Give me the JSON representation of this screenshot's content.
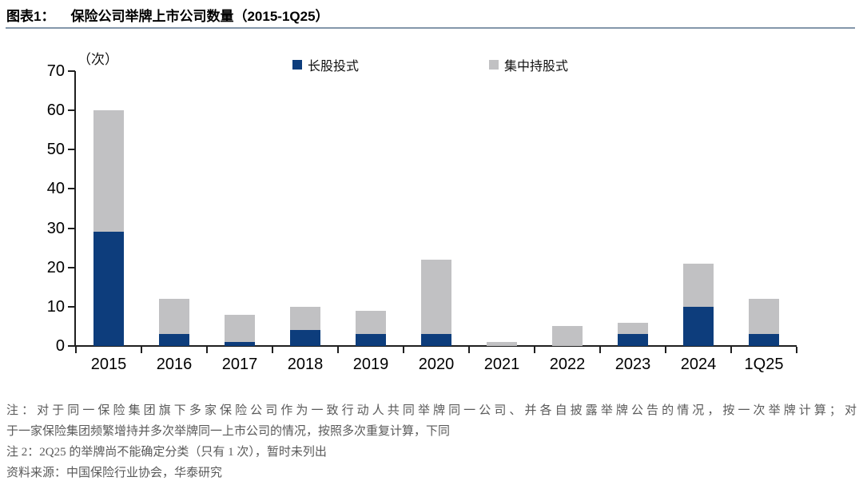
{
  "header": {
    "fig_label": "图表1：",
    "title": "保险公司举牌上市公司数量（2015-1Q25）"
  },
  "chart_data": {
    "type": "bar",
    "stacked": true,
    "title": "保险公司举牌上市公司数量（2015-1Q25）",
    "unit_label": "（次）",
    "categories": [
      "2015",
      "2016",
      "2017",
      "2018",
      "2019",
      "2020",
      "2021",
      "2022",
      "2023",
      "2024",
      "1Q25"
    ],
    "series": [
      {
        "name": "长股投式",
        "color": "#0D3D7C",
        "values": [
          29,
          3,
          1,
          4,
          3,
          3,
          0,
          0,
          3,
          10,
          3
        ]
      },
      {
        "name": "集中持股式",
        "color": "#C1C1C3",
        "values": [
          31,
          9,
          7,
          6,
          6,
          19,
          1,
          5,
          3,
          11,
          9
        ]
      }
    ],
    "totals": [
      60,
      12,
      8,
      10,
      9,
      22,
      1,
      5,
      6,
      21,
      12
    ],
    "ylim": [
      0,
      70
    ],
    "ytick_step": 10,
    "yticks": [
      0,
      10,
      20,
      30,
      40,
      50,
      60,
      70
    ],
    "legend_position": "top",
    "grid": false
  },
  "footnotes": [
    "注：对于同一保险集团旗下多家保险公司作为一致行动人共同举牌同一公司、并各自披露举牌公告的情况，按一次举牌计算；对",
    "于一家保险集团频繁增持并多次举牌同一上市公司的情况，按照多次重复计算，下同",
    "注 2：2Q25 的举牌尚不能确定分类（只有 1 次），暂时未列出",
    "资料来源：中国保险行业协会，华泰研究"
  ],
  "colors": {
    "bar_blue": "#0D3D7C",
    "bar_gray": "#C1C1C3",
    "title_rule": "#8497AB",
    "axis": "#1F1F1F",
    "footnote_text": "#5A5A5A"
  }
}
